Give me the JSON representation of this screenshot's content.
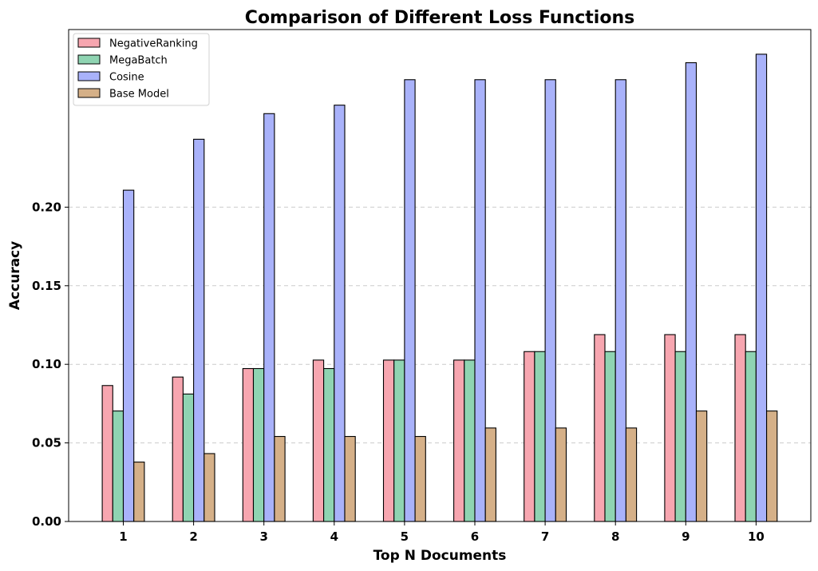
{
  "chart_data": {
    "type": "bar",
    "title": "Comparison of Different Loss Functions",
    "xlabel": "Top N Documents",
    "ylabel": "Accuracy",
    "categories": [
      "1",
      "2",
      "3",
      "4",
      "5",
      "6",
      "7",
      "8",
      "9",
      "10"
    ],
    "yticks": [
      "0.00",
      "0.05",
      "0.10",
      "0.15",
      "0.20"
    ],
    "ylim": [
      0,
      0.313
    ],
    "grid": true,
    "legend_position": "top-left",
    "series": [
      {
        "name": "NegativeRanking",
        "color": "#f7a6b0",
        "values": [
          0.0865,
          0.0919,
          0.0973,
          0.1027,
          0.1027,
          0.1027,
          0.1081,
          0.1189,
          0.1189,
          0.1189
        ]
      },
      {
        "name": "MegaBatch",
        "color": "#8fd4b2",
        "values": [
          0.0703,
          0.0811,
          0.0973,
          0.0973,
          0.1027,
          0.1027,
          0.1081,
          0.1081,
          0.1081,
          0.1081
        ]
      },
      {
        "name": "Cosine",
        "color": "#a9b2fa",
        "values": [
          0.2108,
          0.2432,
          0.2595,
          0.2649,
          0.2811,
          0.2811,
          0.2811,
          0.2811,
          0.2919,
          0.2973
        ]
      },
      {
        "name": "Base Model",
        "color": "#d5b088",
        "values": [
          0.0378,
          0.0432,
          0.0541,
          0.0541,
          0.0541,
          0.0595,
          0.0595,
          0.0595,
          0.0703,
          0.0703
        ]
      }
    ]
  }
}
